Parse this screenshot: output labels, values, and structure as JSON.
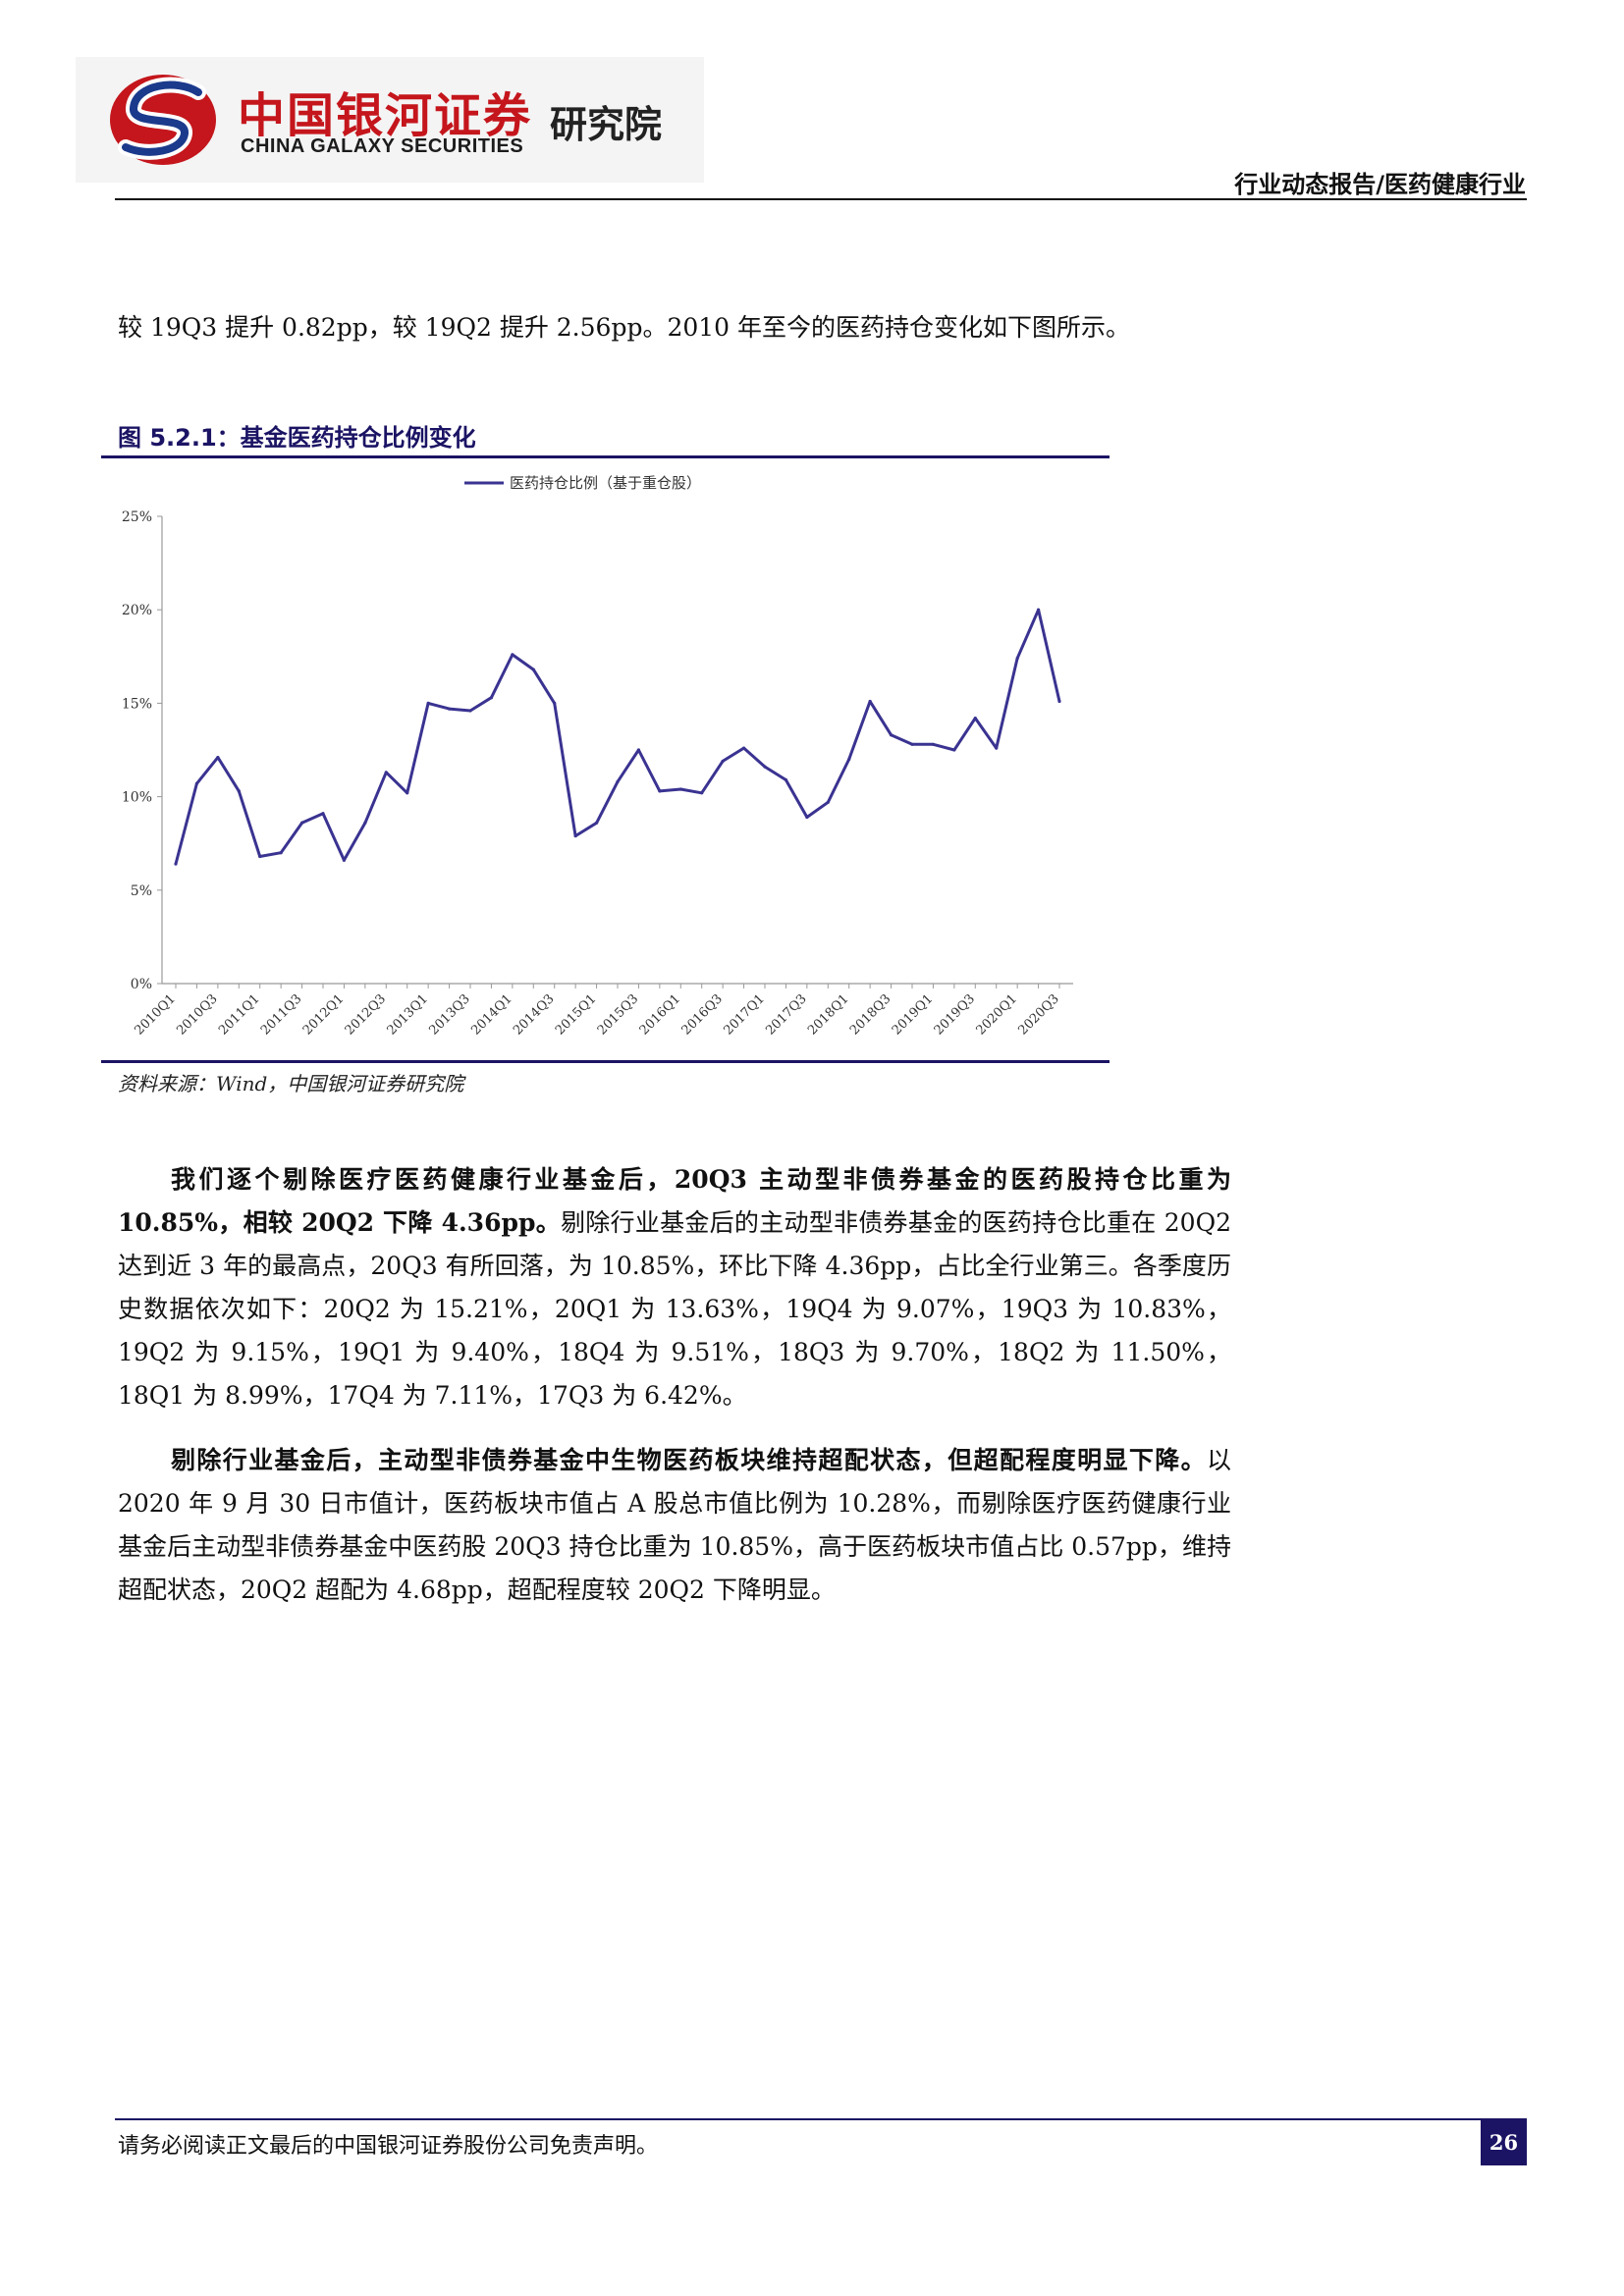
{
  "header": {
    "logo_cn": "中国银河证券",
    "logo_en": "CHINA GALAXY SECURITIES",
    "institute": "研究院",
    "report_type": "行业动态报告/医药健康行业"
  },
  "paragraphs": {
    "p0": "较 19Q3 提升 0.82pp，较 19Q2 提升 2.56pp。2010 年至今的医药持仓变化如下图所示。",
    "p1_bold": "我们逐个剔除医疗医药健康行业基金后，20Q3 主动型非债券基金的医药股持仓比重为 10.85%，相较 20Q2 下降 4.36pp。",
    "p1_text": "剔除行业基金后的主动型非债券基金的医药持仓比重在 20Q2 达到近 3 年的最高点，20Q3 有所回落，为 10.85%，环比下降 4.36pp，占比全行业第三。各季度历史数据依次如下：20Q2 为 15.21%，20Q1 为 13.63%，19Q4 为 9.07%，19Q3 为 10.83%，19Q2 为 9.15%，19Q1 为 9.40%，18Q4 为 9.51%，18Q3 为 9.70%，18Q2 为 11.50%，18Q1 为 8.99%，17Q4 为 7.11%，17Q3 为 6.42%。",
    "p2_bold": "剔除行业基金后，主动型非债券基金中生物医药板块维持超配状态，但超配程度明显下降。",
    "p2_text": "以 2020 年 9 月 30 日市值计，医药板块市值占 A 股总市值比例为 10.28%，而剔除医疗医药健康行业基金后主动型非债券基金中医药股 20Q3 持仓比重为 10.85%，高于医药板块市值占比 0.57pp，维持超配状态，20Q2 超配为 4.68pp，超配程度较 20Q2 下降明显。"
  },
  "figure": {
    "title": "图 5.2.1：基金医药持仓比例变化",
    "source": "资料来源：Wind，中国银河证券研究院"
  },
  "chart_data": {
    "type": "line",
    "legend": "医药持仓比例（基于重仓股）",
    "ylim": [
      0,
      25
    ],
    "yticks": [
      "0%",
      "5%",
      "10%",
      "15%",
      "20%",
      "25%"
    ],
    "xtick_labels": [
      "2010Q1",
      "2010Q3",
      "2011Q1",
      "2011Q3",
      "2012Q1",
      "2012Q3",
      "2013Q1",
      "2013Q3",
      "2014Q1",
      "2014Q3",
      "2015Q1",
      "2015Q3",
      "2016Q1",
      "2016Q3",
      "2017Q1",
      "2017Q3",
      "2018Q1",
      "2018Q3",
      "2019Q1",
      "2019Q3",
      "2020Q1",
      "2020Q3"
    ],
    "x": [
      "2010Q1",
      "2010Q2",
      "2010Q3",
      "2010Q4",
      "2011Q1",
      "2011Q2",
      "2011Q3",
      "2011Q4",
      "2012Q1",
      "2012Q2",
      "2012Q3",
      "2012Q4",
      "2013Q1",
      "2013Q2",
      "2013Q3",
      "2013Q4",
      "2014Q1",
      "2014Q2",
      "2014Q3",
      "2014Q4",
      "2015Q1",
      "2015Q2",
      "2015Q3",
      "2015Q4",
      "2016Q1",
      "2016Q2",
      "2016Q3",
      "2016Q4",
      "2017Q1",
      "2017Q2",
      "2017Q3",
      "2017Q4",
      "2018Q1",
      "2018Q2",
      "2018Q3",
      "2018Q4",
      "2019Q1",
      "2019Q2",
      "2019Q3",
      "2019Q4",
      "2020Q1",
      "2020Q2",
      "2020Q3"
    ],
    "series": [
      {
        "name": "医药持仓比例（基于重仓股）",
        "color": "#3a3391",
        "values": [
          6.4,
          10.7,
          12.1,
          10.3,
          6.8,
          7.0,
          8.6,
          9.1,
          6.6,
          8.6,
          11.3,
          10.2,
          15.0,
          14.7,
          14.6,
          15.3,
          17.6,
          16.8,
          15.0,
          7.9,
          8.6,
          10.8,
          12.5,
          10.3,
          10.4,
          10.2,
          11.9,
          12.6,
          11.6,
          10.9,
          8.9,
          9.7,
          12.0,
          15.1,
          13.3,
          12.8,
          12.8,
          12.5,
          14.2,
          12.6,
          17.4,
          20.0,
          15.1
        ]
      }
    ]
  },
  "footer": {
    "disclaimer": "请务必阅读正文最后的中国银河证券股份公司免责声明。",
    "page_number": "26"
  }
}
